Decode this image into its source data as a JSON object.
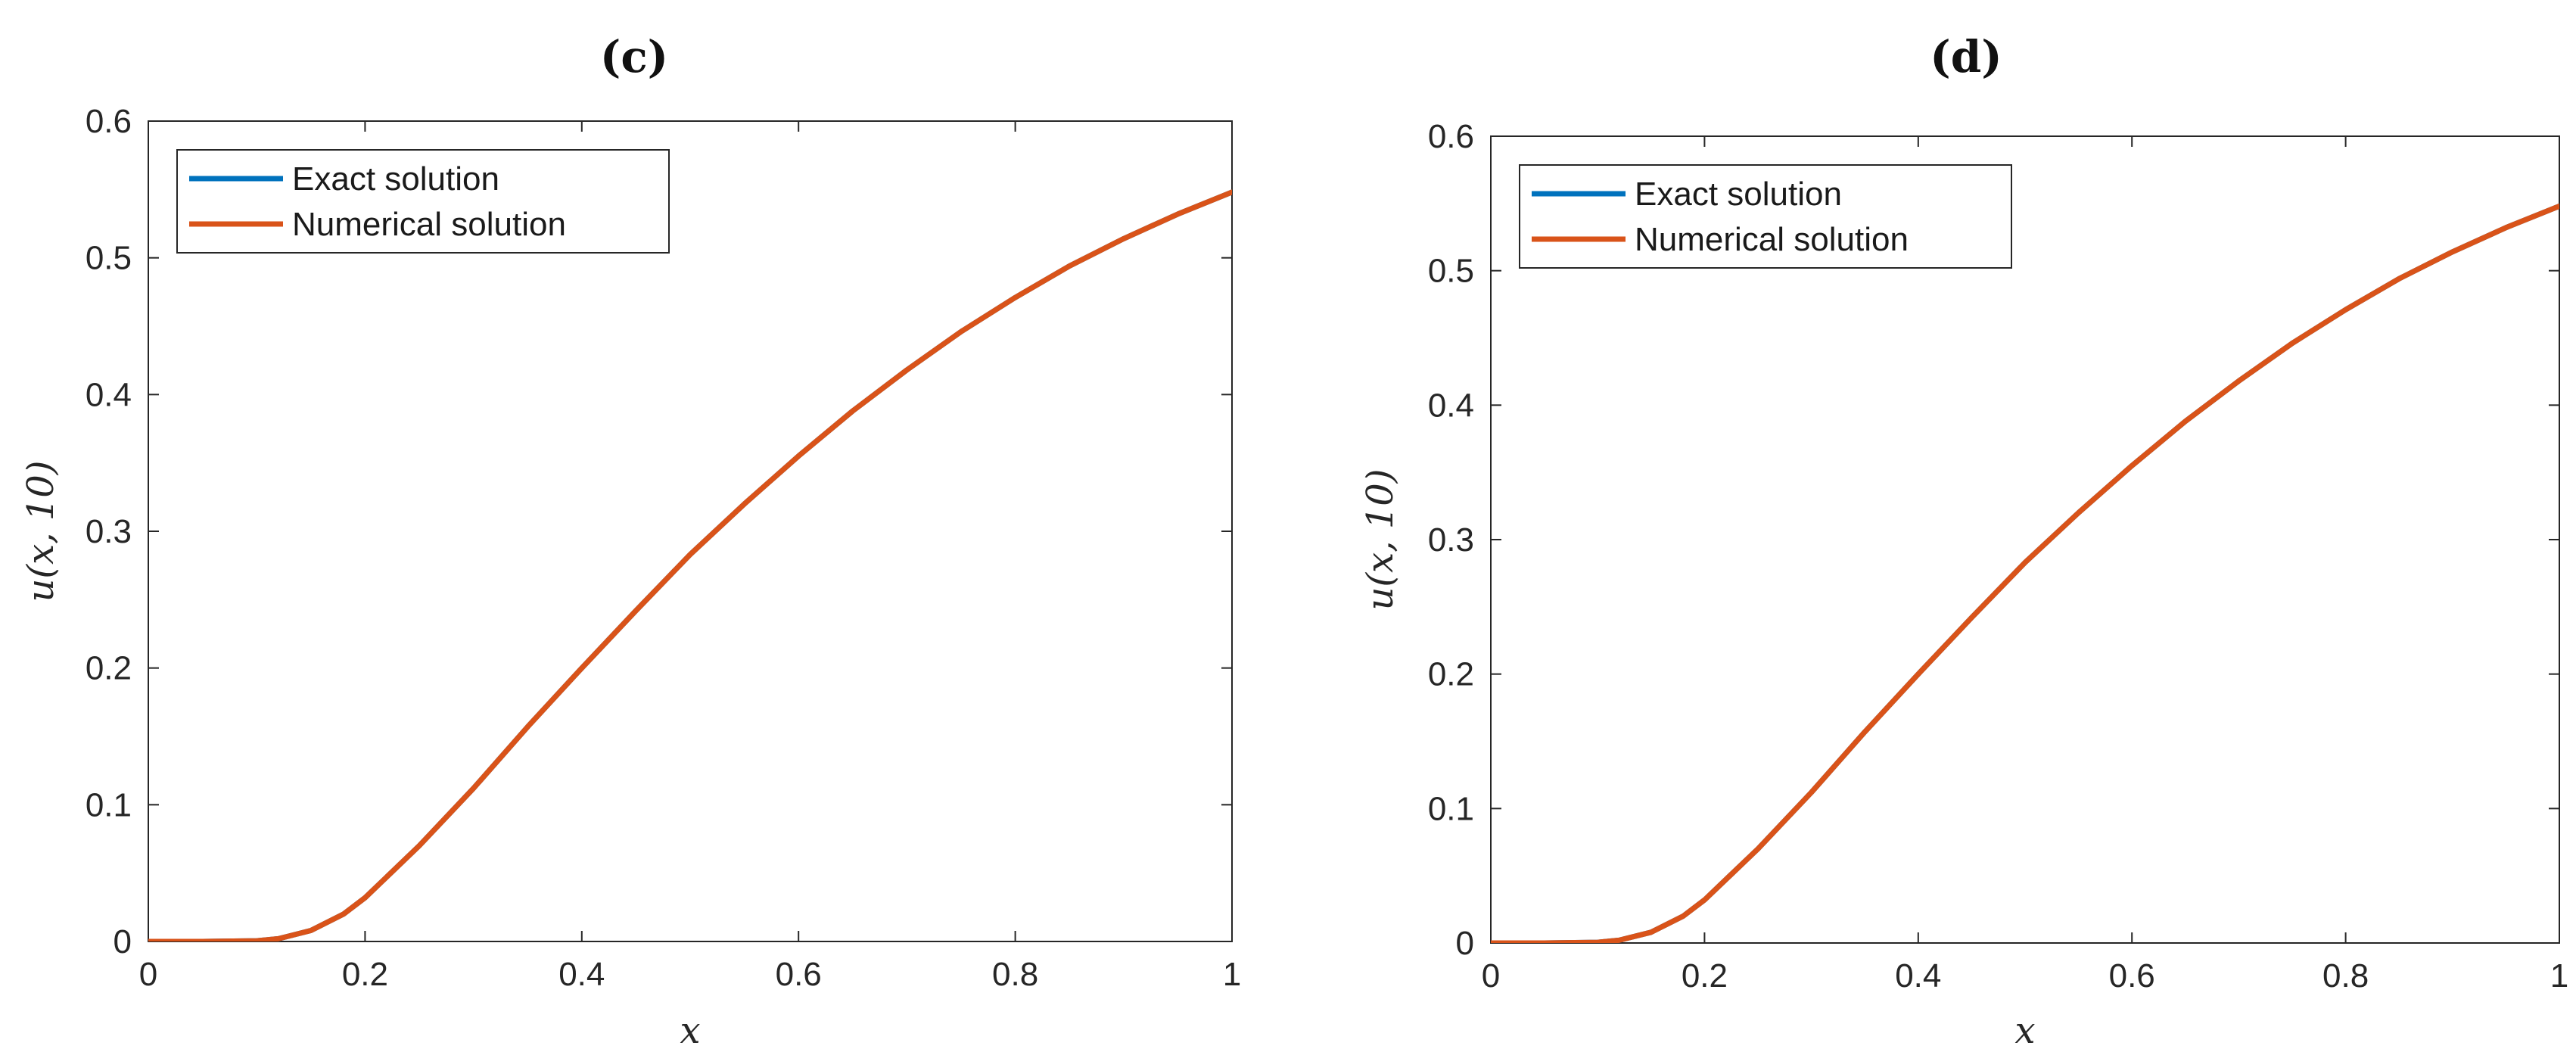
{
  "chart_data": [
    {
      "type": "line",
      "title": "(c)",
      "xlabel": "x",
      "ylabel": "u(x, 10)",
      "xlim": [
        0,
        1
      ],
      "ylim": [
        0,
        0.6
      ],
      "xticks": [
        0,
        0.2,
        0.4,
        0.6,
        0.8,
        1
      ],
      "xtick_labels": [
        "0",
        "0.2",
        "0.4",
        "0.6",
        "0.8",
        "1"
      ],
      "yticks": [
        0,
        0.1,
        0.2,
        0.3,
        0.4,
        0.5,
        0.6
      ],
      "ytick_labels": [
        "0",
        "0.1",
        "0.2",
        "0.3",
        "0.4",
        "0.5",
        "0.6"
      ],
      "grid": false,
      "legend_position": "top-left",
      "x": [
        0,
        0.05,
        0.1,
        0.12,
        0.15,
        0.18,
        0.2,
        0.25,
        0.3,
        0.35,
        0.4,
        0.45,
        0.5,
        0.55,
        0.6,
        0.65,
        0.7,
        0.75,
        0.8,
        0.85,
        0.9,
        0.95,
        1
      ],
      "series": [
        {
          "name": "Exact solution",
          "color": "#0072BD",
          "values": [
            0,
            0,
            0.0005,
            0.002,
            0.008,
            0.02,
            0.032,
            0.07,
            0.112,
            0.157,
            0.2,
            0.242,
            0.283,
            0.32,
            0.355,
            0.388,
            0.418,
            0.446,
            0.471,
            0.494,
            0.514,
            0.532,
            0.548
          ]
        },
        {
          "name": "Numerical solution",
          "color": "#D95319",
          "values": [
            0,
            0,
            0.0005,
            0.002,
            0.008,
            0.02,
            0.032,
            0.07,
            0.112,
            0.157,
            0.2,
            0.242,
            0.283,
            0.32,
            0.355,
            0.388,
            0.418,
            0.446,
            0.471,
            0.494,
            0.514,
            0.532,
            0.548
          ]
        }
      ]
    },
    {
      "type": "line",
      "title": "(d)",
      "xlabel": "x",
      "ylabel": "u(x, 10)",
      "xlim": [
        0,
        1
      ],
      "ylim": [
        0,
        0.6
      ],
      "xticks": [
        0,
        0.2,
        0.4,
        0.6,
        0.8,
        1
      ],
      "xtick_labels": [
        "0",
        "0.2",
        "0.4",
        "0.6",
        "0.8",
        "1"
      ],
      "yticks": [
        0,
        0.1,
        0.2,
        0.3,
        0.4,
        0.5,
        0.6
      ],
      "ytick_labels": [
        "0",
        "0.1",
        "0.2",
        "0.3",
        "0.4",
        "0.5",
        "0.6"
      ],
      "grid": false,
      "legend_position": "top-left",
      "x": [
        0,
        0.05,
        0.1,
        0.12,
        0.15,
        0.18,
        0.2,
        0.25,
        0.3,
        0.35,
        0.4,
        0.45,
        0.5,
        0.55,
        0.6,
        0.65,
        0.7,
        0.75,
        0.8,
        0.85,
        0.9,
        0.95,
        1
      ],
      "series": [
        {
          "name": "Exact solution",
          "color": "#0072BD",
          "values": [
            0,
            0,
            0.0005,
            0.002,
            0.008,
            0.02,
            0.032,
            0.07,
            0.112,
            0.157,
            0.2,
            0.242,
            0.283,
            0.32,
            0.355,
            0.388,
            0.418,
            0.446,
            0.471,
            0.494,
            0.514,
            0.532,
            0.548
          ]
        },
        {
          "name": "Numerical solution",
          "color": "#D95319",
          "values": [
            0,
            0,
            0.0005,
            0.002,
            0.008,
            0.02,
            0.032,
            0.07,
            0.112,
            0.157,
            0.2,
            0.242,
            0.283,
            0.32,
            0.355,
            0.388,
            0.418,
            0.446,
            0.471,
            0.494,
            0.514,
            0.532,
            0.548
          ]
        }
      ]
    }
  ]
}
